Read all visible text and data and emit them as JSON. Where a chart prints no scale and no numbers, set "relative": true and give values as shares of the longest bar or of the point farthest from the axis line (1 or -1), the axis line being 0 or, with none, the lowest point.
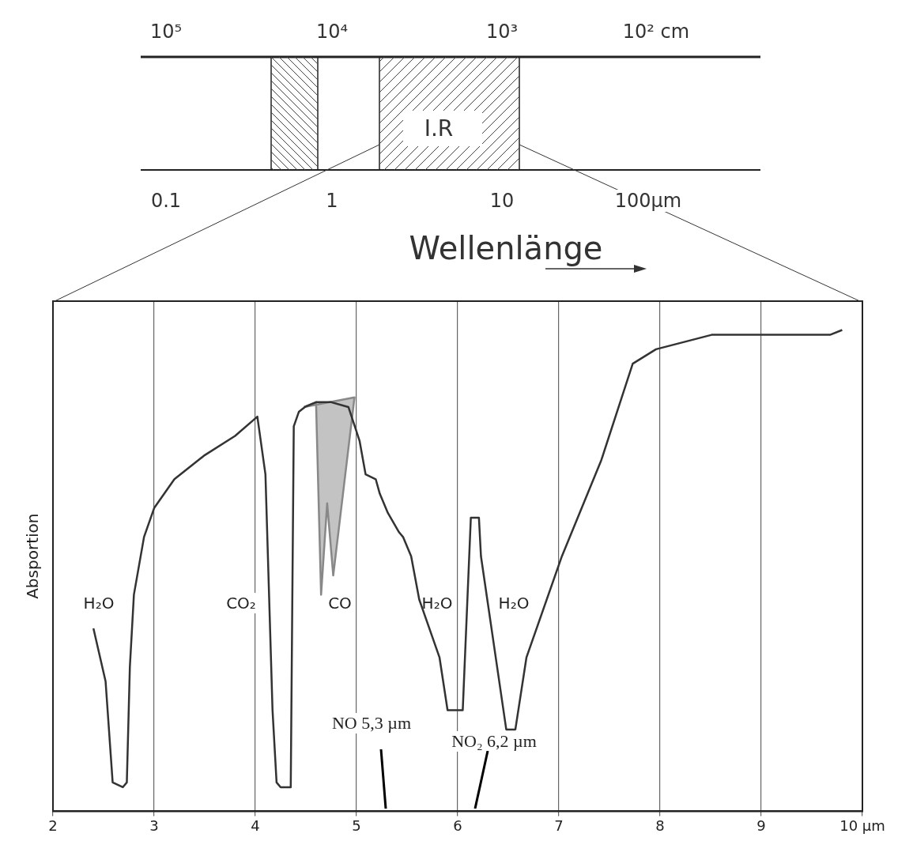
{
  "chart_data": {
    "type": "line",
    "ylabel": "Absportion",
    "relative": true,
    "xlim": [
      2,
      10
    ],
    "xticks": [
      2,
      3,
      4,
      5,
      6,
      7,
      8,
      9,
      {
        "value": 10,
        "label": "10 µm"
      }
    ],
    "grid": "x",
    "marker": "none",
    "series": [
      {
        "color": "#333333",
        "x": [
          2.4,
          2.52,
          2.59,
          2.69,
          2.73,
          2.76,
          2.8,
          2.9,
          3.0,
          3.2,
          3.5,
          3.8,
          4.02,
          4.1,
          4.17,
          4.21,
          4.25,
          4.35,
          4.38,
          4.43,
          4.49,
          4.6,
          4.75,
          4.92,
          5.03,
          5.09,
          5.19,
          5.23,
          5.31,
          5.42,
          5.46,
          5.54,
          5.62,
          5.82,
          5.9,
          6.01,
          6.05,
          6.13,
          6.21,
          6.23,
          6.48,
          6.57,
          6.68,
          7.03,
          7.42,
          7.73,
          7.96,
          8.51,
          9.68,
          9.8
        ],
        "values": [
          0.38,
          0.27,
          0.06,
          0.05,
          0.06,
          0.3,
          0.45,
          0.57,
          0.63,
          0.69,
          0.74,
          0.78,
          0.82,
          0.7,
          0.21,
          0.06,
          0.05,
          0.05,
          0.8,
          0.83,
          0.84,
          0.85,
          0.85,
          0.84,
          0.77,
          0.7,
          0.69,
          0.66,
          0.62,
          0.58,
          0.57,
          0.53,
          0.44,
          0.32,
          0.21,
          0.21,
          0.21,
          0.61,
          0.61,
          0.53,
          0.17,
          0.17,
          0.32,
          0.53,
          0.73,
          0.93,
          0.96,
          0.99,
          0.99,
          1.0
        ]
      },
      {
        "type": "area",
        "color": "#888888",
        "x": [
          4.48,
          4.6,
          4.65,
          4.71,
          4.77,
          4.98,
          4.48
        ],
        "values": [
          0.84,
          0.85,
          0.45,
          0.64,
          0.49,
          0.86,
          0.84
        ]
      }
    ],
    "annotations": [
      "10⁵",
      "10⁴",
      "10³",
      "10² cm",
      "0.1",
      "1",
      "10",
      "100µm",
      "I.R",
      "Wellenlänge",
      "H₂O",
      "CO₂",
      "CO",
      "H₂O",
      "H₂O",
      "NO 5,3 µm",
      "NO₂ 6,2 µm"
    ]
  }
}
